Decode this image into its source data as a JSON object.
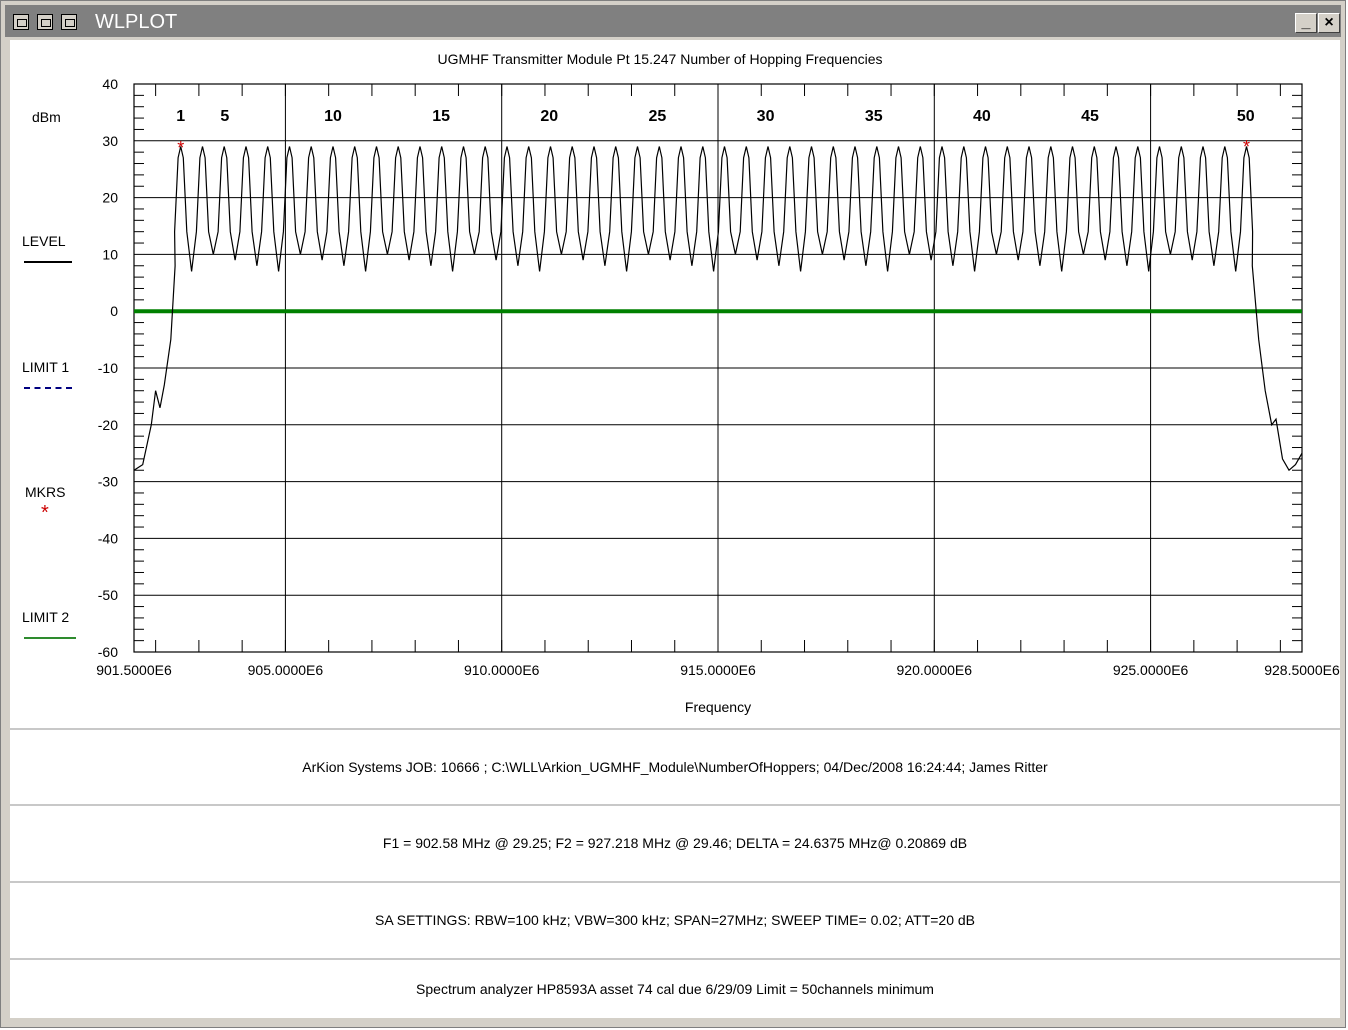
{
  "window": {
    "title": "WLPLOT",
    "buttons": {
      "minimize": "_",
      "close": "×"
    }
  },
  "legend": {
    "unit": "dBm",
    "level": "LEVEL",
    "limit1": "LIMIT 1",
    "markers": "MKRS",
    "limit2": "LIMIT 2",
    "marker_symbol": "*"
  },
  "info": {
    "job_line": "ArKion Systems  JOB: 10666   ;  C:\\WLL\\Arkion_UGMHF_Module\\NumberOfHoppers;    04/Dec/2008 16:24:44; James Ritter",
    "marker_line": "F1 = 902.58 MHz @ 29.25;   F2 = 927.218 MHz @ 29.46;   DELTA = 24.6375 MHz@ 0.20869 dB",
    "sa_line": "SA SETTINGS: RBW=100 kHz; VBW=300 kHz; SPAN=27MHz; SWEEP TIME= 0.02; ATT=20 dB",
    "note_line": "Spectrum analyzer HP8593A asset 74 cal due 6/29/09  Limit = 50channels minimum"
  },
  "colors": {
    "trace": "#000000",
    "limit1": "#000080",
    "limit2": "#008000",
    "marker": "#cc0000",
    "titlebar": "#808080"
  },
  "chart_data": {
    "type": "line",
    "title": "UGMHF Transmitter Module Pt 15.247 Number of Hopping Frequencies",
    "xlabel": "Frequency",
    "ylabel": "dBm",
    "xlim": [
      901.5,
      928.5
    ],
    "ylim": [
      -60,
      40
    ],
    "grid": true,
    "x_ticks": [
      901.5,
      905,
      910,
      915,
      920,
      925,
      928.5
    ],
    "x_tick_labels": [
      "901.5000E6",
      "905.0000E6",
      "910.0000E6",
      "915.0000E6",
      "920.0000E6",
      "925.0000E6",
      "928.5000E6"
    ],
    "y_ticks": [
      40,
      30,
      20,
      10,
      0,
      -10,
      -20,
      -30,
      -40,
      -50,
      -60
    ],
    "y_tick_labels": [
      "40",
      "30",
      "20",
      "10",
      "0",
      "-10",
      "-20",
      "-30",
      "-40",
      "-50",
      "-60"
    ],
    "channel_labels": [
      {
        "label": "1",
        "x": 902.58
      },
      {
        "label": "5",
        "x": 903.6
      },
      {
        "label": "10",
        "x": 906.1
      },
      {
        "label": "15",
        "x": 908.6
      },
      {
        "label": "20",
        "x": 911.1
      },
      {
        "label": "25",
        "x": 913.6
      },
      {
        "label": "30",
        "x": 916.1
      },
      {
        "label": "35",
        "x": 918.6
      },
      {
        "label": "40",
        "x": 921.1
      },
      {
        "label": "45",
        "x": 923.6
      },
      {
        "label": "50",
        "x": 927.2
      }
    ],
    "hopping_channels": {
      "count": 50,
      "first_mhz": 902.58,
      "last_mhz": 927.218,
      "peak_dbm": 29,
      "trough_dbm": 8
    },
    "series": [
      {
        "name": "LEVEL",
        "edge_points_low": [
          [
            901.5,
            -28
          ],
          [
            901.7,
            -27
          ],
          [
            901.9,
            -20
          ],
          [
            902.0,
            -14
          ],
          [
            902.1,
            -17
          ],
          [
            902.2,
            -13
          ],
          [
            902.35,
            -5
          ],
          [
            902.45,
            8
          ]
        ],
        "edge_points_high": [
          [
            927.35,
            8
          ],
          [
            927.5,
            -5
          ],
          [
            927.65,
            -14
          ],
          [
            927.8,
            -20
          ],
          [
            927.9,
            -19
          ],
          [
            928.05,
            -26
          ],
          [
            928.2,
            -28
          ],
          [
            928.35,
            -27
          ],
          [
            928.5,
            -25
          ]
        ]
      },
      {
        "name": "LIMIT 2",
        "value": 0
      }
    ],
    "markers": [
      {
        "label": "F1",
        "x": 902.58,
        "y": 29.25
      },
      {
        "label": "F2",
        "x": 927.218,
        "y": 29.46
      }
    ]
  }
}
